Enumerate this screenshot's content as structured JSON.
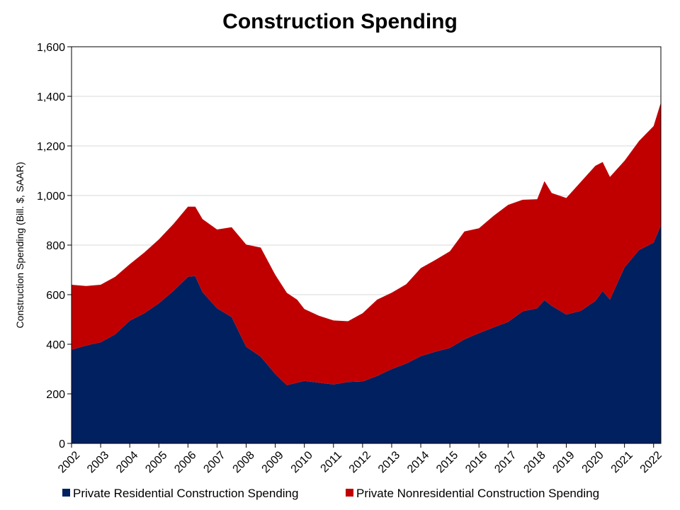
{
  "chart_data": {
    "type": "area",
    "stacked": true,
    "title": "Construction Spending",
    "xlabel": "",
    "ylabel": "Construction Spending (Bill. $, SAAR)",
    "ylim": [
      0,
      1600
    ],
    "yticks": [
      0,
      200,
      400,
      600,
      800,
      1000,
      1200,
      1400,
      1600
    ],
    "ytick_labels": [
      "0",
      "200",
      "400",
      "600",
      "800",
      "1,000",
      "1,200",
      "1,400",
      "1,600"
    ],
    "xlim": [
      2002.0,
      2022.25
    ],
    "xticks": [
      2002,
      2003,
      2004,
      2005,
      2006,
      2007,
      2008,
      2009,
      2010,
      2011,
      2012,
      2013,
      2014,
      2015,
      2016,
      2017,
      2018,
      2019,
      2020,
      2021,
      2022
    ],
    "xtick_labels": [
      "2002",
      "2003",
      "2004",
      "2005",
      "2006",
      "2007",
      "2008",
      "2009",
      "2010",
      "2011",
      "2012",
      "2013",
      "2014",
      "2015",
      "2016",
      "2017",
      "2018",
      "2019",
      "2020",
      "2021",
      "2022"
    ],
    "grid": "horizontal",
    "legend_position": "bottom",
    "x": [
      2002.0,
      2002.5,
      2003.0,
      2003.5,
      2004.0,
      2004.5,
      2005.0,
      2005.5,
      2006.0,
      2006.25,
      2006.5,
      2007.0,
      2007.5,
      2008.0,
      2008.5,
      2009.0,
      2009.4,
      2009.75,
      2010.0,
      2010.5,
      2011.0,
      2011.5,
      2012.0,
      2012.5,
      2013.0,
      2013.5,
      2014.0,
      2014.5,
      2015.0,
      2015.5,
      2016.0,
      2016.5,
      2017.0,
      2017.5,
      2018.0,
      2018.25,
      2018.5,
      2019.0,
      2019.5,
      2020.0,
      2020.25,
      2020.5,
      2021.0,
      2021.5,
      2022.0,
      2022.25
    ],
    "series": [
      {
        "name": "Private Residential Construction Spending",
        "color": "#002060",
        "values": [
          378,
          395,
          408,
          440,
          495,
          525,
          565,
          615,
          672,
          675,
          610,
          545,
          510,
          390,
          350,
          280,
          235,
          245,
          252,
          245,
          238,
          248,
          250,
          272,
          300,
          322,
          352,
          370,
          385,
          420,
          445,
          468,
          490,
          533,
          545,
          578,
          555,
          520,
          535,
          575,
          615,
          580,
          710,
          780,
          810,
          880
        ]
      },
      {
        "name": "Private Nonresidential Construction Spending",
        "color": "#C00000",
        "values": [
          262,
          240,
          232,
          232,
          228,
          245,
          258,
          270,
          283,
          280,
          295,
          318,
          362,
          412,
          440,
          400,
          372,
          335,
          290,
          270,
          258,
          245,
          275,
          308,
          308,
          320,
          355,
          370,
          390,
          435,
          423,
          450,
          472,
          450,
          440,
          480,
          455,
          470,
          520,
          545,
          520,
          495,
          430,
          440,
          470,
          495
        ]
      }
    ]
  },
  "legend": {
    "items": [
      {
        "label": "Private Residential Construction Spending",
        "color": "#002060"
      },
      {
        "label": "Private Nonresidential Construction Spending",
        "color": "#C00000"
      }
    ]
  }
}
